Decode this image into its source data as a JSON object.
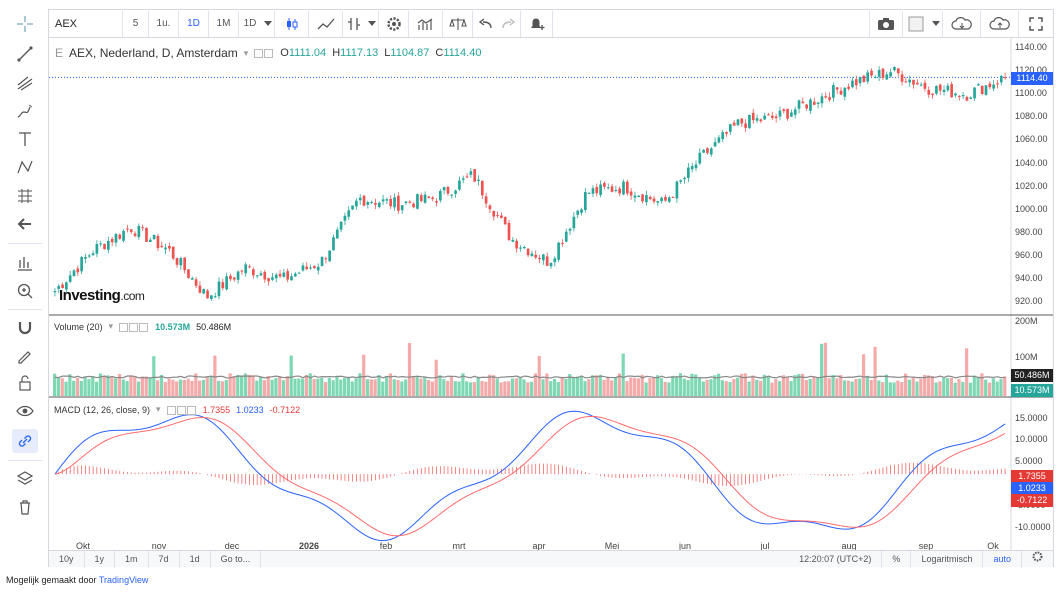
{
  "toolbar": {
    "symbol": "AEX",
    "intervals": [
      "5",
      "1u.",
      "1D",
      "1M",
      "1D"
    ],
    "active_interval_index": 2
  },
  "legend": {
    "main_title": "AEX, Nederland, D, Amsterdam",
    "o_label": "O",
    "o_value": "1111.04",
    "h_label": "H",
    "h_value": "1117.13",
    "l_label": "L",
    "l_value": "1104.87",
    "c_label": "C",
    "c_value": "1114.40",
    "volume_title": "Volume (20)",
    "volume_value": "10.573M",
    "volume_ma": "50.486M",
    "macd_title": "MACD (12, 26, close, 9)",
    "macd_hist": "1.7355",
    "macd_line": "1.0233",
    "macd_signal": "-0.7122"
  },
  "price_axis": [
    "1140.00",
    "1120.00",
    "1100.00",
    "1080.00",
    "1060.00",
    "1040.00",
    "1020.00",
    "1000.00",
    "980.00",
    "960.00",
    "940.00",
    "920.00"
  ],
  "price_tag": "1114.40",
  "volume_axis": [
    "200M",
    "100M"
  ],
  "volume_tags": [
    "50.486M",
    "10.573M"
  ],
  "macd_axis": [
    "15.0000",
    "10.0000",
    "5.0000",
    "-5.0000",
    "-10.0000"
  ],
  "macd_tags": [
    "1.7355",
    "1.0233",
    "-0.7122"
  ],
  "x_axis": [
    {
      "label": "Okt",
      "bold": false
    },
    {
      "label": "nov",
      "bold": false
    },
    {
      "label": "dec",
      "bold": false
    },
    {
      "label": "2026",
      "bold": true
    },
    {
      "label": "feb",
      "bold": false
    },
    {
      "label": "mrt",
      "bold": false
    },
    {
      "label": "apr",
      "bold": false
    },
    {
      "label": "Mei",
      "bold": false
    },
    {
      "label": "jun",
      "bold": false
    },
    {
      "label": "jul",
      "bold": false
    },
    {
      "label": "aug",
      "bold": false
    },
    {
      "label": "sep",
      "bold": false
    },
    {
      "label": "Ok",
      "bold": false
    }
  ],
  "footer": {
    "ranges": [
      "10y",
      "1y",
      "1m",
      "7d",
      "1d"
    ],
    "goto": "Go to...",
    "time": "12:20:07 (UTC+2)",
    "percent": "%",
    "log": "Logaritmisch",
    "auto": "auto"
  },
  "logo": {
    "brand": "Investing",
    "suffix": ".com"
  },
  "made_by": {
    "prefix": "Mogelijk gemaakt door",
    "link": "TradingView"
  },
  "colors": {
    "up": "#26a69a",
    "down": "#ef5350",
    "macd_line": "#2962ff",
    "signal": "#ff6b6b",
    "price_tag": "#2962ff"
  },
  "chart_data": {
    "type": "candlestick",
    "symbol": "AEX",
    "x_range": [
      "Okt",
      "Ok"
    ],
    "y_range": [
      910,
      1145
    ],
    "close_trend": [
      {
        "x": "Okt",
        "y": 930
      },
      {
        "x": "Okt",
        "y": 965
      },
      {
        "x": "nov",
        "y": 985
      },
      {
        "x": "nov",
        "y": 965
      },
      {
        "x": "nov",
        "y": 925
      },
      {
        "x": "dec",
        "y": 950
      },
      {
        "x": "dec",
        "y": 940
      },
      {
        "x": "2026",
        "y": 955
      },
      {
        "x": "2026",
        "y": 1010
      },
      {
        "x": "feb",
        "y": 1005
      },
      {
        "x": "feb",
        "y": 1010
      },
      {
        "x": "mrt",
        "y": 1030
      },
      {
        "x": "mrt",
        "y": 975
      },
      {
        "x": "apr",
        "y": 955
      },
      {
        "x": "apr",
        "y": 1015
      },
      {
        "x": "Mei",
        "y": 1020
      },
      {
        "x": "Mei",
        "y": 1005
      },
      {
        "x": "jun",
        "y": 1045
      },
      {
        "x": "jun",
        "y": 1075
      },
      {
        "x": "jul",
        "y": 1080
      },
      {
        "x": "jul",
        "y": 1095
      },
      {
        "x": "aug",
        "y": 1110
      },
      {
        "x": "aug",
        "y": 1120
      },
      {
        "x": "sep",
        "y": 1105
      },
      {
        "x": "sep",
        "y": 1100
      },
      {
        "x": "Ok",
        "y": 1114.4
      }
    ],
    "volume_ma_last": "50.486M",
    "volume_last": "10.573M",
    "macd": {
      "hist": 1.7355,
      "macd": 1.0233,
      "signal": -0.7122
    }
  }
}
